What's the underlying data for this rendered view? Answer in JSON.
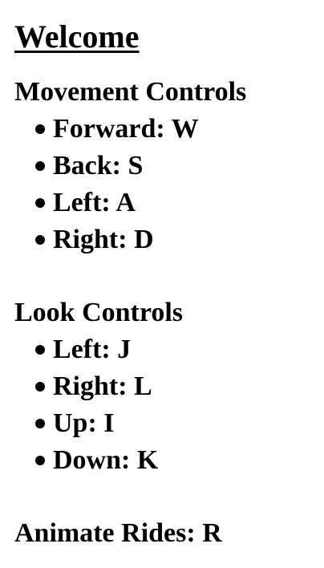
{
  "title": "Welcome",
  "movement": {
    "heading": "Movement Controls",
    "items": [
      "Forward: W",
      "Back: S",
      "Left: A",
      "Right: D"
    ]
  },
  "look": {
    "heading": "Look Controls",
    "items": [
      "Left: J",
      "Right: L",
      "Up: I",
      "Down: K"
    ]
  },
  "animate": {
    "label": "Animate Rides: R"
  }
}
